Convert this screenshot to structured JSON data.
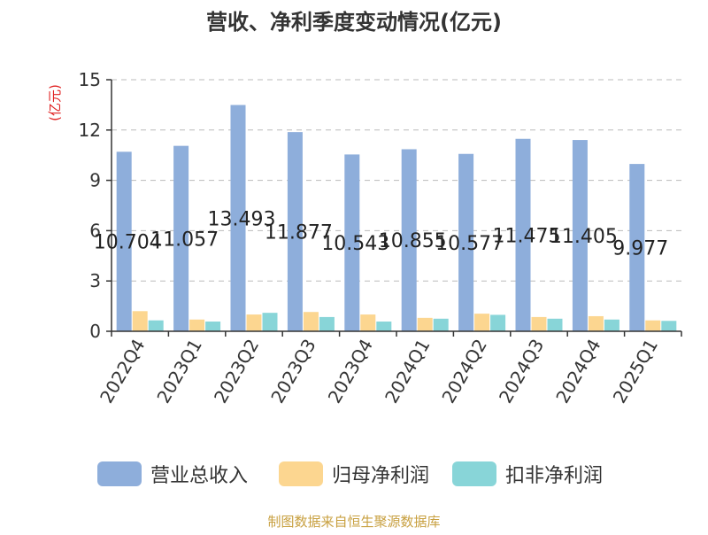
{
  "chart_data": {
    "type": "bar",
    "title": "营收、净利季度变动情况(亿元)",
    "ylabel": "(亿元)",
    "xlabel": "",
    "ylim": [
      0,
      15
    ],
    "yticks": [
      0,
      3,
      6,
      9,
      12,
      15
    ],
    "grid": "horizontal dashed",
    "legend_position": "bottom",
    "categories": [
      "2022Q4",
      "2023Q1",
      "2023Q2",
      "2023Q3",
      "2023Q4",
      "2024Q1",
      "2024Q2",
      "2024Q3",
      "2024Q4",
      "2025Q1"
    ],
    "series": [
      {
        "name": "营业总收入",
        "color": "#8eaedb",
        "values": [
          10.704,
          11.057,
          13.493,
          11.877,
          10.543,
          10.855,
          10.577,
          11.475,
          11.405,
          9.977
        ],
        "labels": [
          "10.704",
          "11.057",
          "13.493",
          "11.877",
          "10.543",
          "10.855",
          "10.577",
          "11.475",
          "11.405",
          "9.977"
        ]
      },
      {
        "name": "归母净利润",
        "color": "#fcd690",
        "values": [
          1.2,
          0.7,
          1.0,
          1.15,
          1.0,
          0.8,
          1.05,
          0.85,
          0.9,
          0.65
        ]
      },
      {
        "name": "扣非净利润",
        "color": "#88d5d8",
        "values": [
          0.65,
          0.58,
          1.1,
          0.85,
          0.58,
          0.75,
          0.98,
          0.75,
          0.7,
          0.62
        ]
      }
    ],
    "source": "制图数据来自恒生聚源数据库"
  },
  "colors": {
    "axis": "#333333",
    "grid": "#bbbbbb",
    "ylabel": "#e02020",
    "source": "#c8a040"
  }
}
